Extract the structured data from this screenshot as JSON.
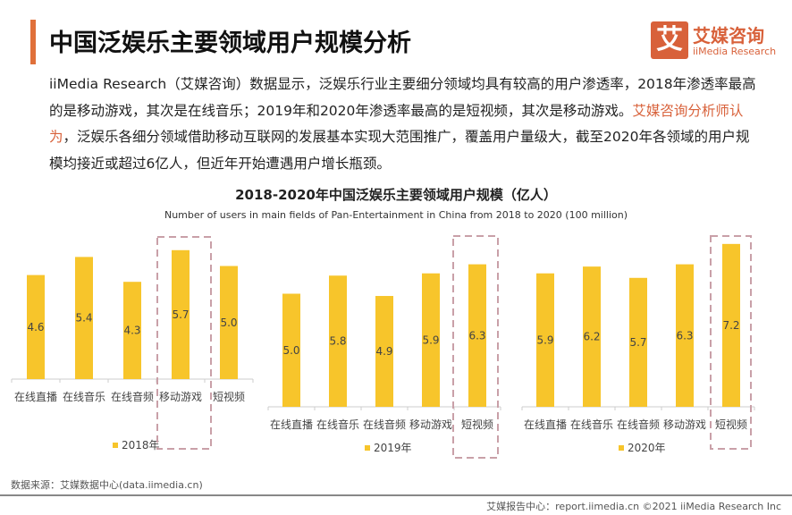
{
  "header": {
    "title": "中国泛娱乐主要领域用户规模分析",
    "logo_mark": "艾",
    "logo_cn": "艾媒咨询",
    "logo_en": "iiMedia Research"
  },
  "paragraph": {
    "part1": "iiMedia Research（艾媒咨询）数据显示，泛娱乐行业主要细分领域均具有较高的用户渗透率，2018年渗透率最高的是移动游戏，其次是在线音乐；2019年和2020年渗透率最高的是短视频，其次是移动游戏。",
    "highlight": "艾媒咨询分析师认为",
    "part2": "，泛娱乐各细分领域借助移动互联网的发展基本实现大范围推广，覆盖用户量级大，截至2020年各领域的用户规模均接近或超过6亿人，但近年开始遭遇用户增长瓶颈。"
  },
  "chart_title": "2018-2020年中国泛娱乐主要领域用户规模（亿人）",
  "chart_subtitle": "Number of users in main fields of Pan-Entertainment in China from 2018 to 2020 (100 million)",
  "colors": {
    "bar": "#f7c52b",
    "accent": "#d8613a",
    "highlight_box": "#c9a0a8"
  },
  "chart_data": [
    {
      "type": "bar",
      "categories": [
        "在线直播",
        "在线音乐",
        "在线音频",
        "移动游戏",
        "短视频"
      ],
      "series": [
        {
          "name": "2018年",
          "values": [
            4.6,
            5.4,
            4.3,
            5.7,
            5.0
          ]
        }
      ],
      "highlighted": "移动游戏",
      "legend": "bottom"
    },
    {
      "type": "bar",
      "categories": [
        "在线直播",
        "在线音乐",
        "在线音频",
        "移动游戏",
        "短视频"
      ],
      "series": [
        {
          "name": "2019年",
          "values": [
            5.0,
            5.8,
            4.9,
            5.9,
            6.3
          ]
        }
      ],
      "highlighted": "短视频",
      "legend": "bottom"
    },
    {
      "type": "bar",
      "categories": [
        "在线直播",
        "在线音乐",
        "在线音频",
        "移动游戏",
        "短视频"
      ],
      "series": [
        {
          "name": "2020年",
          "values": [
            5.9,
            6.2,
            5.7,
            6.3,
            7.2
          ]
        }
      ],
      "highlighted": "短视频",
      "legend": "bottom"
    }
  ],
  "footer": {
    "source": "数据来源：艾媒数据中心(data.iimedia.cn)",
    "copyright": "艾媒报告中心：report.iimedia.cn ©2021  iiMedia Research  Inc"
  }
}
